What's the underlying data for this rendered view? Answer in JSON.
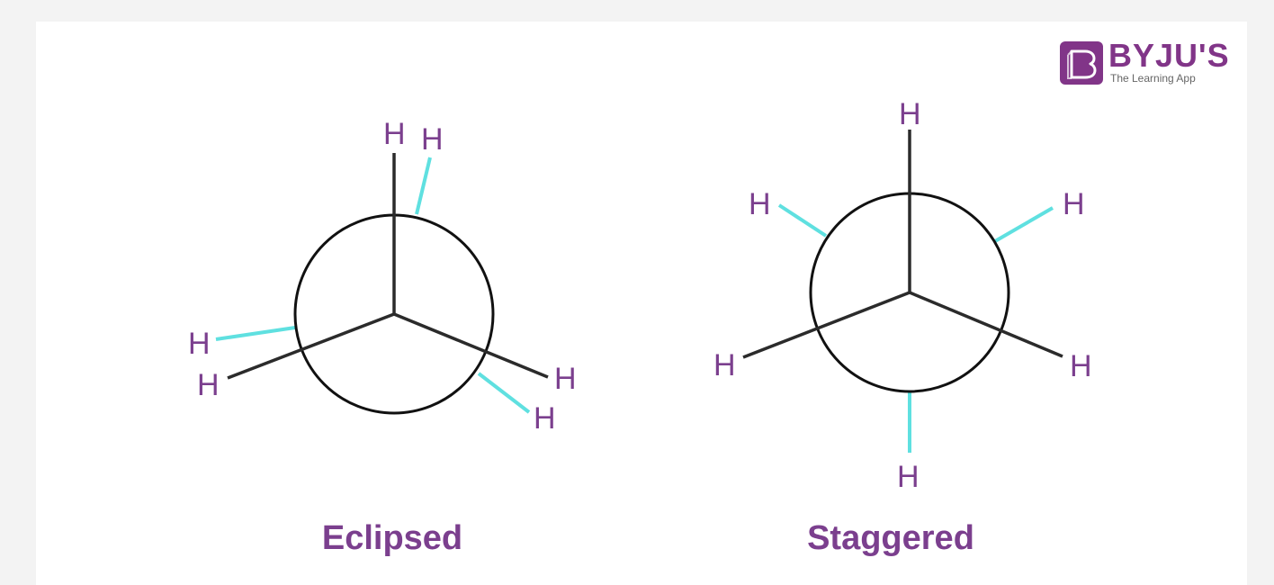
{
  "logo": {
    "brand": "BYJU'S",
    "tagline": "The Learning App"
  },
  "diagrams": [
    {
      "caption": "Eclipsed",
      "atom": "H",
      "front_bond_color": "#2b2b2b",
      "back_bond_color": "#5fe0e0"
    },
    {
      "caption": "Staggered",
      "atom": "H",
      "front_bond_color": "#2b2b2b",
      "back_bond_color": "#5fe0e0"
    }
  ],
  "colors": {
    "label": "#7b3f8e",
    "circle": "#111111",
    "front_bond": "#2b2b2b",
    "back_bond": "#5fe0e0"
  }
}
